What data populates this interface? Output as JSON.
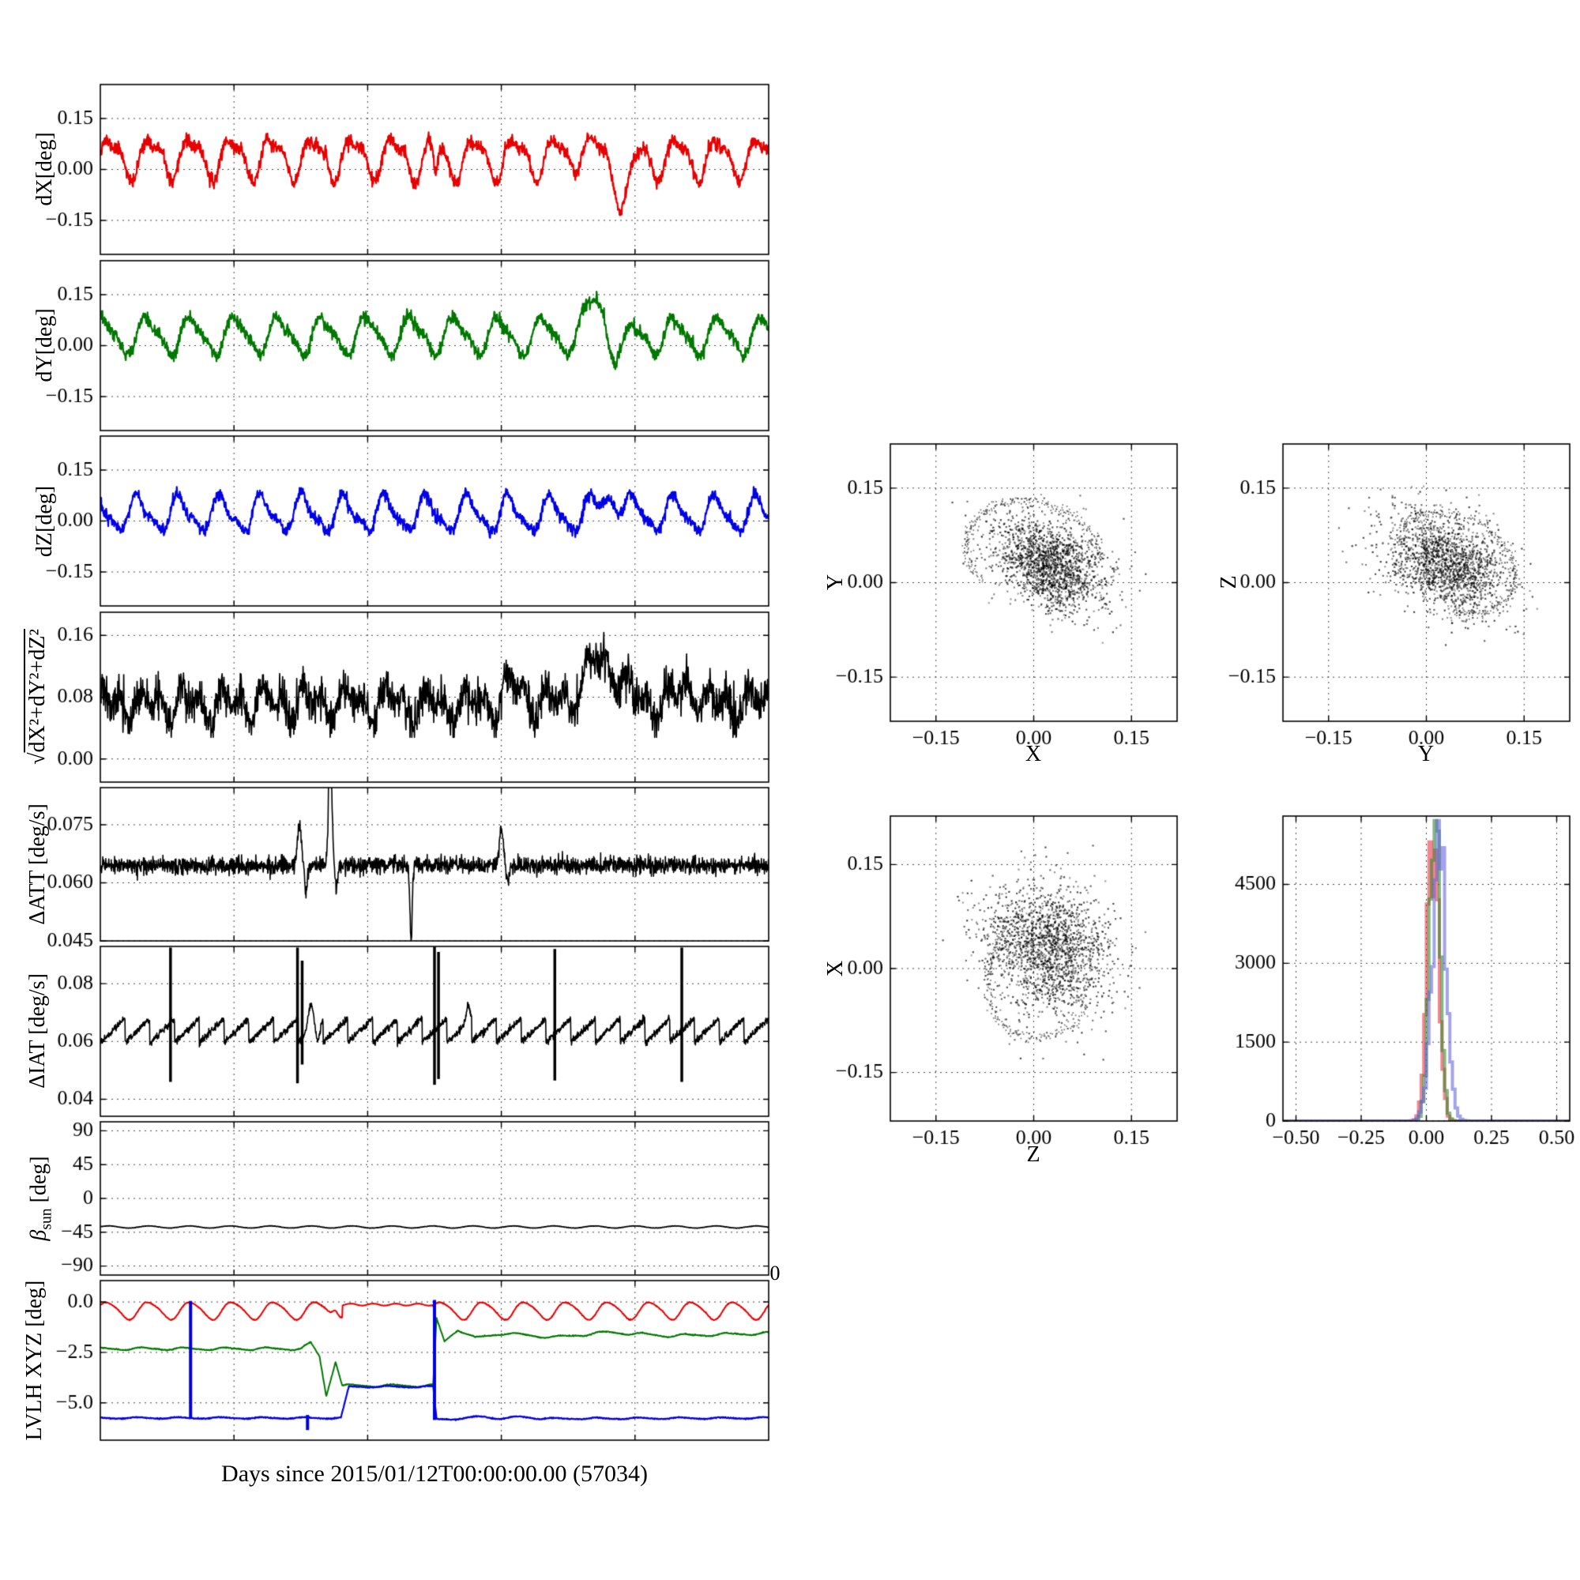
{
  "figure": {
    "caption": "Days since 2015/01/12T00:00:00.00 (57034)",
    "stray_zero": "0",
    "background": "#ffffff"
  },
  "labels": {
    "sqrt_radical": "√",
    "sqrt_body": "dX²+dY²+dZ²",
    "beta_symbol": "β",
    "beta_sub": "sun",
    "beta_unit": " [deg]"
  },
  "chart_data": [
    {
      "id": "dX",
      "type": "line",
      "ylabel": "dX[deg]",
      "xlim": [
        0,
        1
      ],
      "ylim": [
        -0.25,
        0.25
      ],
      "yticks": [
        {
          "v": 0.15,
          "label": "0.15"
        },
        {
          "v": 0.0,
          "label": "0.00"
        },
        {
          "v": -0.15,
          "label": "−0.15"
        }
      ],
      "xgrid": [
        0.2,
        0.4,
        0.6,
        0.8
      ],
      "series": [
        {
          "name": "dX",
          "color": "#e60000",
          "lw": 2.2,
          "seed": 11,
          "n": 1600,
          "base": [
            [
              0,
              0.035
            ],
            [
              1,
              0.035
            ]
          ],
          "osc": {
            "amp": 0.055,
            "cycles": 16.5,
            "phase": 0.0,
            "harm2": 0.38
          },
          "noise": 0.01,
          "bumps": [
            {
              "x": 0.502,
              "w": 0.004,
              "h": -0.08
            },
            {
              "x": 0.72,
              "w": 0.012,
              "h": 0.045
            },
            {
              "x": 0.785,
              "w": 0.016,
              "h": -0.11
            }
          ]
        }
      ]
    },
    {
      "id": "dY",
      "type": "line",
      "ylabel": "dY[deg]",
      "xlim": [
        0,
        1
      ],
      "ylim": [
        -0.25,
        0.25
      ],
      "yticks": [
        {
          "v": 0.15,
          "label": "0.15"
        },
        {
          "v": 0.0,
          "label": "0.00"
        },
        {
          "v": -0.15,
          "label": "−0.15"
        }
      ],
      "xgrid": [
        0.2,
        0.4,
        0.6,
        0.8
      ],
      "series": [
        {
          "name": "dY",
          "color": "#007700",
          "lw": 2.2,
          "seed": 12,
          "n": 1600,
          "base": [
            [
              0,
              0.03
            ],
            [
              1,
              0.03
            ]
          ],
          "osc": {
            "amp": 0.05,
            "cycles": 15.2,
            "phase": 1.1,
            "harm2": 0.3
          },
          "noise": 0.009,
          "bumps": [
            {
              "x": 0.745,
              "w": 0.02,
              "h": 0.1
            },
            {
              "x": 0.775,
              "w": 0.018,
              "h": -0.055
            }
          ]
        }
      ]
    },
    {
      "id": "dZ",
      "type": "line",
      "ylabel": "dZ[deg]",
      "xlim": [
        0,
        1
      ],
      "ylim": [
        -0.25,
        0.25
      ],
      "yticks": [
        {
          "v": 0.15,
          "label": "0.15"
        },
        {
          "v": 0.0,
          "label": "0.00"
        },
        {
          "v": -0.15,
          "label": "−0.15"
        }
      ],
      "xgrid": [
        0.2,
        0.4,
        0.6,
        0.8
      ],
      "series": [
        {
          "name": "dZ",
          "color": "#0000e6",
          "lw": 2.2,
          "seed": 13,
          "n": 1600,
          "base": [
            [
              0,
              0.02
            ],
            [
              1,
              0.02
            ]
          ],
          "osc": {
            "amp": 0.048,
            "cycles": 16.2,
            "phase": 2.1,
            "harm2": 0.35
          },
          "noise": 0.009,
          "bumps": [
            {
              "x": 0.765,
              "w": 0.015,
              "h": 0.075
            }
          ]
        }
      ]
    },
    {
      "id": "mag",
      "type": "line",
      "ylabel": "√dX²+dY²+dZ²",
      "xlim": [
        0,
        1
      ],
      "ylim": [
        -0.03,
        0.19
      ],
      "yticks": [
        {
          "v": 0.16,
          "label": "0.16"
        },
        {
          "v": 0.08,
          "label": "0.08"
        },
        {
          "v": 0.0,
          "label": "0.00"
        }
      ],
      "xgrid": [
        0.2,
        0.4,
        0.6,
        0.8
      ],
      "series": [
        {
          "name": "magnitude",
          "color": "#000000",
          "lw": 1.7,
          "seed": 14,
          "n": 1800,
          "base": [
            [
              0,
              0.072
            ],
            [
              1,
              0.072
            ]
          ],
          "osc": {
            "amp": 0.013,
            "cycles": 16.5,
            "phase": 0.6,
            "harm2": 1.1
          },
          "noise": 0.013,
          "bumps": [
            {
              "x": 0.62,
              "w": 0.02,
              "h": 0.02
            },
            {
              "x": 0.75,
              "w": 0.035,
              "h": 0.055
            },
            {
              "x": 0.88,
              "w": 0.02,
              "h": 0.022
            }
          ],
          "clamp": [
            0.028,
            0.185
          ]
        }
      ]
    },
    {
      "id": "att",
      "type": "line",
      "ylabel": "ΔATT [deg/s]",
      "xlim": [
        0,
        1
      ],
      "ylim": [
        0.045,
        0.0846
      ],
      "yticks": [
        {
          "v": 0.075,
          "label": "0.075"
        },
        {
          "v": 0.06,
          "label": "0.060"
        },
        {
          "v": 0.045,
          "label": "0.045"
        }
      ],
      "xgrid": [
        0.2,
        0.4,
        0.6,
        0.8
      ],
      "series": [
        {
          "name": "delta-att",
          "color": "#000000",
          "lw": 1.6,
          "seed": 15,
          "n": 2200,
          "base": [
            [
              0,
              0.0645
            ],
            [
              1,
              0.0645
            ]
          ],
          "noise": 0.0011,
          "bumps": [
            {
              "x": 0.298,
              "w": 0.004,
              "h": 0.011
            },
            {
              "x": 0.308,
              "w": 0.003,
              "h": -0.007
            },
            {
              "x": 0.344,
              "w": 0.0035,
              "h": 0.03
            },
            {
              "x": 0.353,
              "w": 0.003,
              "h": -0.006
            },
            {
              "x": 0.465,
              "w": 0.0025,
              "h": -0.0195
            },
            {
              "x": 0.6,
              "w": 0.004,
              "h": 0.009
            },
            {
              "x": 0.61,
              "w": 0.003,
              "h": -0.004
            }
          ]
        }
      ]
    },
    {
      "id": "iat",
      "type": "line",
      "ylabel": "ΔIAT [deg/s]",
      "xlim": [
        0,
        1
      ],
      "ylim": [
        0.0341,
        0.0929
      ],
      "yticks": [
        {
          "v": 0.08,
          "label": "0.08"
        },
        {
          "v": 0.06,
          "label": "0.06"
        },
        {
          "v": 0.04,
          "label": "0.04"
        }
      ],
      "xgrid": [
        0.2,
        0.4,
        0.6,
        0.8
      ],
      "series": [
        {
          "name": "delta-iat",
          "color": "#000000",
          "lw": 1.6,
          "seed": 16,
          "n": 2200,
          "base": [
            [
              0,
              0.0638
            ],
            [
              1,
              0.0638
            ]
          ],
          "saw": {
            "amp": 0.0042,
            "teeth": 27
          },
          "noise": 0.0006,
          "bumps": [
            {
              "x": 0.315,
              "w": 0.006,
              "h": 0.009
            },
            {
              "x": 0.325,
              "w": 0.005,
              "h": -0.006
            },
            {
              "x": 0.55,
              "w": 0.004,
              "h": 0.006
            }
          ],
          "vlines": [
            {
              "x": 0.105,
              "y0": 0.046,
              "y1": 0.0925
            },
            {
              "x": 0.295,
              "y0": 0.0455,
              "y1": 0.0925
            },
            {
              "x": 0.302,
              "y0": 0.052,
              "y1": 0.088
            },
            {
              "x": 0.5,
              "y0": 0.045,
              "y1": 0.0928
            },
            {
              "x": 0.506,
              "y0": 0.047,
              "y1": 0.091
            },
            {
              "x": 0.68,
              "y0": 0.0465,
              "y1": 0.092
            },
            {
              "x": 0.87,
              "y0": 0.046,
              "y1": 0.0925
            }
          ],
          "vlw": 3.5
        }
      ]
    },
    {
      "id": "beta",
      "type": "line",
      "ylabel": "β_sun [deg]",
      "xlim": [
        0,
        1
      ],
      "ylim": [
        -102,
        102
      ],
      "yticks": [
        {
          "v": 90,
          "label": "90"
        },
        {
          "v": 45,
          "label": "45"
        },
        {
          "v": 0,
          "label": "0"
        },
        {
          "v": -45,
          "label": "−45"
        },
        {
          "v": -90,
          "label": "−90"
        }
      ],
      "xgrid": [
        0.2,
        0.4,
        0.6,
        0.8
      ],
      "series": [
        {
          "name": "beta-sun",
          "color": "#000000",
          "lw": 1.8,
          "seed": 17,
          "n": 1200,
          "base": [
            [
              0,
              -38
            ],
            [
              1,
              -38
            ]
          ],
          "osc": {
            "amp": 1.4,
            "cycles": 16.5,
            "phase": 0.3,
            "harm2": 0
          },
          "noise": 0.12
        }
      ]
    },
    {
      "id": "lvlh",
      "type": "line",
      "ylabel": "LVLH XYZ [deg]",
      "xlim": [
        0,
        1
      ],
      "ylim": [
        -6.85,
        1.06
      ],
      "yticks": [
        {
          "v": 0,
          "label": "0.0"
        },
        {
          "v": -2.5,
          "label": "−2.5"
        },
        {
          "v": -5,
          "label": "−5.0"
        }
      ],
      "xgrid": [
        0.2,
        0.4,
        0.6,
        0.8
      ],
      "series": [
        {
          "name": "lvlh-x",
          "color": "#e60000",
          "lw": 2.0,
          "seed": 18,
          "n": 1600,
          "base": [
            [
              0,
              -0.42
            ],
            [
              1,
              -0.42
            ]
          ],
          "osc": {
            "amp": 0.42,
            "cycles": 16.0,
            "phase": 0.5,
            "harm2": 0.15
          },
          "noise": 0.012,
          "flats": [
            {
              "x0": 0.362,
              "x1": 0.498,
              "y": -0.13,
              "ripple": 0.05
            }
          ],
          "bumps": [
            {
              "x": 0.352,
              "w": 0.006,
              "h": 0.4
            }
          ]
        },
        {
          "name": "lvlh-y",
          "color": "#007700",
          "lw": 2.0,
          "seed": 19,
          "n": 1600,
          "base": [
            [
              0,
              -2.32
            ],
            [
              0.3,
              -2.32
            ],
            [
              0.315,
              -2.05
            ],
            [
              0.328,
              -2.7
            ],
            [
              0.338,
              -4.65
            ],
            [
              0.352,
              -2.9
            ],
            [
              0.362,
              -4.15
            ],
            [
              0.498,
              -4.15
            ],
            [
              0.503,
              -0.85
            ],
            [
              0.515,
              -1.95
            ],
            [
              0.535,
              -1.35
            ],
            [
              0.56,
              -1.8
            ],
            [
              0.6,
              -1.55
            ],
            [
              0.68,
              -1.75
            ],
            [
              0.76,
              -1.5
            ],
            [
              0.85,
              -1.68
            ],
            [
              1,
              -1.55
            ]
          ],
          "osc": {
            "amp": 0.06,
            "cycles": 16.0,
            "phase": 1.4,
            "harm2": 0.3
          },
          "noise": 0.012
        },
        {
          "name": "lvlh-z",
          "color": "#0000e6",
          "lw": 2.2,
          "seed": 20,
          "n": 1600,
          "base": [
            [
              0,
              -5.75
            ],
            [
              0.36,
              -5.75
            ],
            [
              0.372,
              -4.2
            ],
            [
              0.498,
              -4.2
            ],
            [
              0.503,
              -5.8
            ],
            [
              1,
              -5.75
            ]
          ],
          "osc": {
            "amp": 0.035,
            "cycles": 16.0,
            "phase": 2.2,
            "harm2": 0.2
          },
          "noise": 0.012,
          "bumps": [
            {
              "x": 0.57,
              "w": 0.018,
              "h": 0.12
            },
            {
              "x": 0.63,
              "w": 0.018,
              "h": 0.1
            }
          ],
          "vlines": [
            {
              "x": 0.135,
              "y0": -5.8,
              "y1": 0.05
            },
            {
              "x": 0.31,
              "y0": -6.35,
              "y1": -5.6
            },
            {
              "x": 0.5,
              "y0": -5.85,
              "y1": 0.1
            }
          ],
          "vlw": 4
        }
      ]
    },
    {
      "id": "sYX",
      "type": "scatter",
      "xlabel": "X",
      "ylabel": "Y",
      "xlim": [
        -0.22,
        0.22
      ],
      "ylim": [
        -0.22,
        0.22
      ],
      "xticks": [
        {
          "v": -0.15,
          "label": "−0.15"
        },
        {
          "v": 0,
          "label": "0.00"
        },
        {
          "v": 0.15,
          "label": "0.15"
        }
      ],
      "yticks": [
        {
          "v": 0.15,
          "label": "0.15"
        },
        {
          "v": 0,
          "label": "0.00"
        },
        {
          "v": -0.15,
          "label": "−0.15"
        }
      ],
      "cluster": {
        "seed": 21,
        "n": 1700,
        "cx": 0.025,
        "cy": 0.028,
        "sx": 0.048,
        "sy": 0.032,
        "rot": -35
      },
      "arcs": [
        {
          "seed": 31,
          "cx": 0.0,
          "cy": 0.045,
          "rx": 0.105,
          "ry": 0.082,
          "rot": -20,
          "a0": 20,
          "a1": 235,
          "n": 260
        }
      ]
    },
    {
      "id": "sZY",
      "type": "scatter",
      "xlabel": "Y",
      "ylabel": "Z",
      "xlim": [
        -0.22,
        0.22
      ],
      "ylim": [
        -0.22,
        0.22
      ],
      "xticks": [
        {
          "v": -0.15,
          "label": "−0.15"
        },
        {
          "v": 0,
          "label": "0.00"
        },
        {
          "v": 0.15,
          "label": "0.15"
        }
      ],
      "yticks": [
        {
          "v": 0.15,
          "label": "0.15"
        },
        {
          "v": 0,
          "label": "0.00"
        },
        {
          "v": -0.15,
          "label": "−0.15"
        }
      ],
      "cluster": {
        "seed": 22,
        "n": 1700,
        "cx": 0.03,
        "cy": 0.03,
        "sx": 0.05,
        "sy": 0.034,
        "rot": -33
      },
      "arcs": [
        {
          "seed": 32,
          "cx": 0.04,
          "cy": 0.03,
          "rx": 0.1,
          "ry": 0.075,
          "rot": -25,
          "a0": -70,
          "a1": 160,
          "n": 240
        }
      ]
    },
    {
      "id": "sXZ",
      "type": "scatter",
      "xlabel": "Z",
      "ylabel": "X",
      "xlim": [
        -0.22,
        0.22
      ],
      "ylim": [
        -0.22,
        0.22
      ],
      "xticks": [
        {
          "v": -0.15,
          "label": "−0.15"
        },
        {
          "v": 0,
          "label": "0.00"
        },
        {
          "v": 0.15,
          "label": "0.15"
        }
      ],
      "yticks": [
        {
          "v": 0.15,
          "label": "0.15"
        },
        {
          "v": 0,
          "label": "0.00"
        },
        {
          "v": -0.15,
          "label": "−0.15"
        }
      ],
      "cluster": {
        "seed": 23,
        "n": 1800,
        "cx": 0.02,
        "cy": 0.03,
        "sx": 0.05,
        "sy": 0.042,
        "rot": -40
      },
      "arcs": [
        {
          "seed": 33,
          "cx": 0.02,
          "cy": 0.0,
          "rx": 0.085,
          "ry": 0.105,
          "rot": -30,
          "a0": 150,
          "a1": 345,
          "n": 220
        }
      ]
    },
    {
      "id": "hist",
      "type": "hist",
      "xlim": [
        -0.55,
        0.55
      ],
      "ylim": [
        0,
        5800
      ],
      "xticks": [
        {
          "v": -0.5,
          "label": "−0.50"
        },
        {
          "v": -0.25,
          "label": "−0.25"
        },
        {
          "v": 0,
          "label": "0.00"
        },
        {
          "v": 0.25,
          "label": "0.25"
        },
        {
          "v": 0.5,
          "label": "0.50"
        }
      ],
      "yticks": [
        {
          "v": 0,
          "label": "0"
        },
        {
          "v": 1500,
          "label": "1500"
        },
        {
          "v": 3000,
          "label": "3000"
        },
        {
          "v": 4500,
          "label": "4500"
        }
      ],
      "binw": 0.01,
      "alpha": 0.6,
      "lw": 4,
      "series": [
        {
          "name": "dX",
          "color": "#ee3344",
          "mean": 0.025,
          "sigma": 0.021,
          "peak": 5600,
          "seed": 91
        },
        {
          "name": "dY",
          "color": "#2e8b2e",
          "mean": 0.032,
          "sigma": 0.02,
          "peak": 5650,
          "seed": 92
        },
        {
          "name": "dZ",
          "color": "#6666dd",
          "mean": 0.048,
          "sigma": 0.027,
          "peak": 5400,
          "seed": 93
        }
      ]
    }
  ]
}
